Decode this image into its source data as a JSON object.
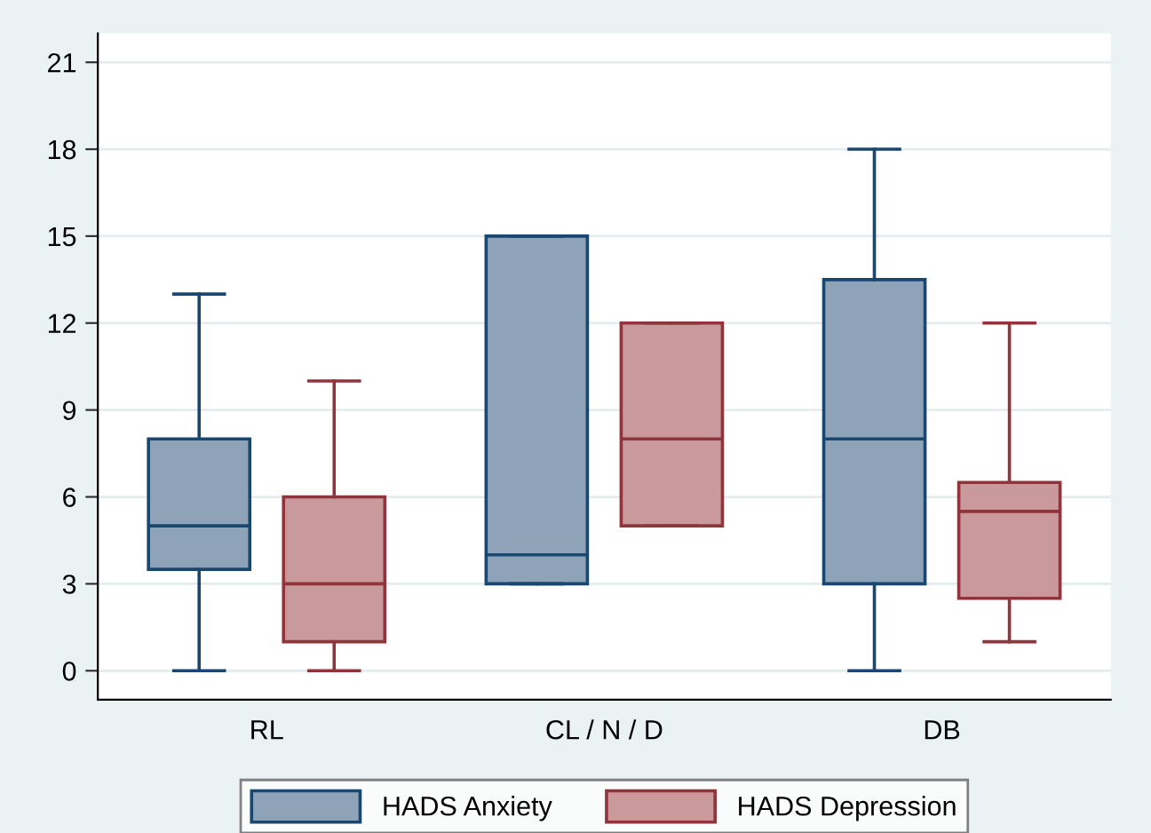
{
  "chart_data": {
    "type": "box",
    "categories": [
      "RL",
      "CL / N / D",
      "DB"
    ],
    "series": [
      {
        "name": "HADS Anxiety",
        "color": "#8ea3b8",
        "boxes": [
          {
            "low": 0,
            "q1": 3.5,
            "median": 5,
            "q3": 8,
            "high": 13
          },
          {
            "low": 3,
            "q1": 3,
            "median": 4,
            "q3": 15,
            "high": 15
          },
          {
            "low": 0,
            "q1": 3,
            "median": 8,
            "q3": 13.5,
            "high": 18
          }
        ]
      },
      {
        "name": "HADS Depression",
        "color": "#c9999c",
        "boxes": [
          {
            "low": 0,
            "q1": 1,
            "median": 3,
            "q3": 6,
            "high": 10
          },
          {
            "low": 5,
            "q1": 5,
            "median": 8,
            "q3": 12,
            "high": 12
          },
          {
            "low": 1,
            "q1": 2.5,
            "median": 5.5,
            "q3": 6.5,
            "high": 12
          }
        ]
      }
    ],
    "ylim": [
      -1,
      22
    ],
    "yticks": [
      0,
      3,
      6,
      9,
      12,
      15,
      18,
      21
    ],
    "grid": "y",
    "legend": "bottom"
  }
}
